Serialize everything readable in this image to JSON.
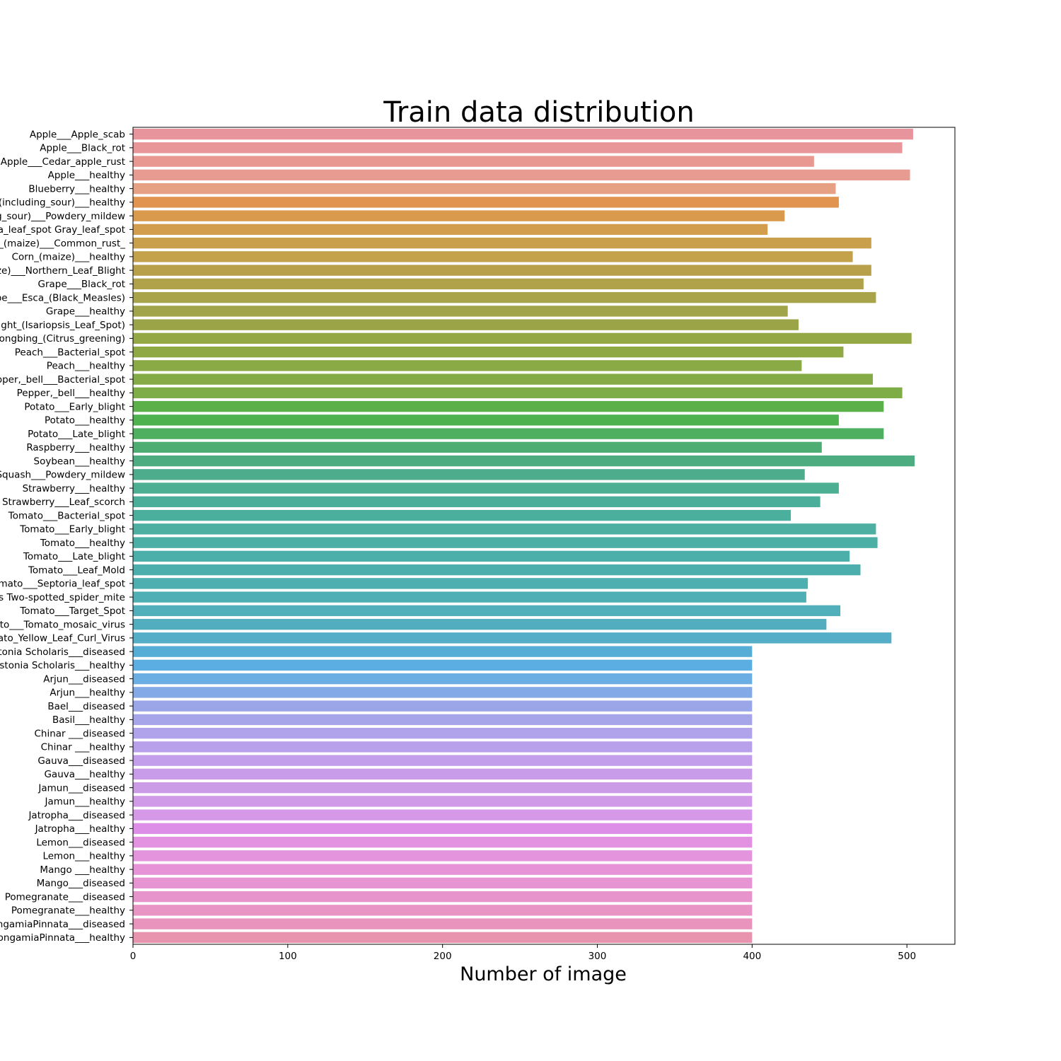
{
  "chart_data": {
    "type": "bar",
    "orientation": "horizontal",
    "title": "Train data distribution",
    "xlabel": "Number of image",
    "ylabel": "",
    "xlim": [
      0,
      531
    ],
    "xticks": [
      0,
      100,
      200,
      300,
      400,
      500
    ],
    "grid": false,
    "categories": [
      "Apple___Apple_scab",
      "Apple___Black_rot",
      "Apple___Cedar_apple_rust",
      "Apple___healthy",
      "Blueberry___healthy",
      "Cherry_(including_sour)___healthy",
      "Cherry_(including_sour)___Powdery_mildew",
      "Corn_(maize)___Cercospora_leaf_spot Gray_leaf_spot",
      "Corn_(maize)___Common_rust_",
      "Corn_(maize)___healthy",
      "Corn_(maize)___Northern_Leaf_Blight",
      "Grape___Black_rot",
      "Grape___Esca_(Black_Measles)",
      "Grape___healthy",
      "Grape___Leaf_blight_(Isariopsis_Leaf_Spot)",
      "Orange___Haunglongbing_(Citrus_greening)",
      "Peach___Bacterial_spot",
      "Peach___healthy",
      "Pepper,_bell___Bacterial_spot",
      "Pepper,_bell___healthy",
      "Potato___Early_blight",
      "Potato___healthy",
      "Potato___Late_blight",
      "Raspberry___healthy",
      "Soybean___healthy",
      "Squash___Powdery_mildew",
      "Strawberry___healthy",
      "Strawberry___Leaf_scorch",
      "Tomato___Bacterial_spot",
      "Tomato___Early_blight",
      "Tomato___healthy",
      "Tomato___Late_blight",
      "Tomato___Leaf_Mold",
      "Tomato___Septoria_leaf_spot",
      "Tomato___Spider_mites Two-spotted_spider_mite",
      "Tomato___Target_Spot",
      "Tomato___Tomato_mosaic_virus",
      "Tomato___Tomato_Yellow_Leaf_Curl_Virus",
      "Alstonia Scholaris___diseased",
      "Alstonia Scholaris___healthy",
      "Arjun___diseased",
      "Arjun___healthy",
      "Bael___diseased",
      "Basil___healthy",
      "Chinar ___diseased",
      "Chinar ___healthy",
      "Gauva___diseased",
      "Gauva___healthy",
      "Jamun___diseased",
      "Jamun___healthy",
      "Jatropha___diseased",
      "Jatropha___healthy",
      "Lemon___diseased",
      "Lemon___healthy",
      "Mango ___healthy",
      "Mango___diseased",
      "Pomegranate___diseased",
      "Pomegranate___healthy",
      "PongamiaPinnata___diseased",
      "PongamiaPinnata___healthy"
    ],
    "values": [
      504,
      497,
      440,
      502,
      454,
      456,
      421,
      410,
      477,
      465,
      477,
      472,
      480,
      423,
      430,
      503,
      459,
      432,
      478,
      497,
      485,
      456,
      485,
      445,
      505,
      434,
      456,
      444,
      425,
      480,
      481,
      463,
      470,
      436,
      435,
      457,
      448,
      490,
      400,
      400,
      400,
      400,
      400,
      400,
      400,
      400,
      400,
      400,
      400,
      400,
      400,
      400,
      400,
      400,
      400,
      400,
      400,
      400,
      400,
      400
    ],
    "colors": [
      "#e8949c",
      "#e8969a",
      "#e89891",
      "#e89b90",
      "#e6a083",
      "#e0944f",
      "#d99a4e",
      "#d29e4e",
      "#c99f4c",
      "#c4a24c",
      "#b8a04b",
      "#afa24a",
      "#a9a349",
      "#a1a448",
      "#9ba547",
      "#95a846",
      "#8fa945",
      "#8aaa45",
      "#85ab46",
      "#7ead47",
      "#5cb049",
      "#4eb24f",
      "#4daf5f",
      "#4ead72",
      "#4dad80",
      "#4cac8c",
      "#4caf94",
      "#4bae9a",
      "#4baf9e",
      "#4cafa2",
      "#4cafa5",
      "#4cafa9",
      "#4dafad",
      "#4eafb1",
      "#4fafb5",
      "#50afba",
      "#52aebf",
      "#54aec8",
      "#56aed6",
      "#5aaee2",
      "#6aaee3",
      "#83a9e6",
      "#9aa6e8",
      "#a6a5ea",
      "#b0a2eb",
      "#b9a0eb",
      "#c29eeb",
      "#c89ce9",
      "#cc9be8",
      "#d19ae8",
      "#d698e8",
      "#dd8ee6",
      "#e292e0",
      "#e494dc",
      "#e693d7",
      "#e794d3",
      "#e794cd",
      "#e894c5",
      "#e894bc",
      "#e894ae"
    ]
  }
}
